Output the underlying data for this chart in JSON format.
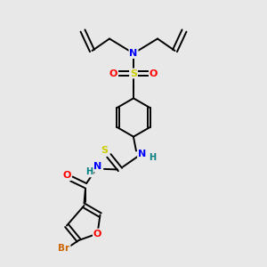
{
  "bg_color": "#e8e8e8",
  "atom_colors": {
    "C": "#000000",
    "N": "#0000ff",
    "O": "#ff0000",
    "S": "#cccc00",
    "Br": "#cc6600",
    "H": "#008080"
  },
  "bond_color": "#000000",
  "lw": 1.4
}
